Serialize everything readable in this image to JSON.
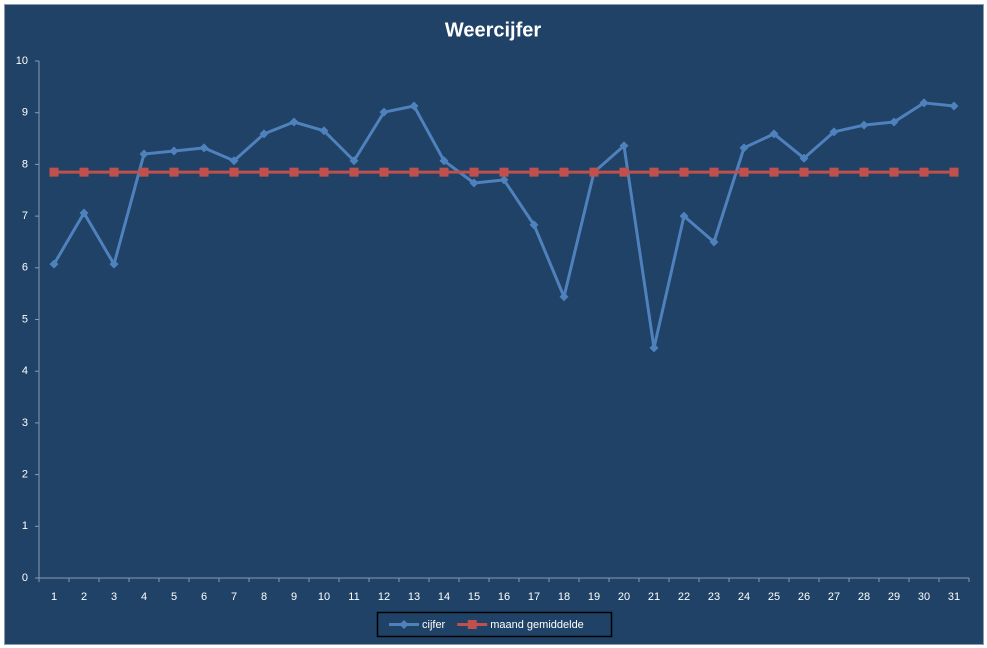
{
  "chart_data": {
    "type": "line",
    "title": "Weercijfer",
    "categories": [
      "1",
      "2",
      "3",
      "4",
      "5",
      "6",
      "7",
      "8",
      "9",
      "10",
      "11",
      "12",
      "13",
      "14",
      "15",
      "16",
      "17",
      "18",
      "19",
      "20",
      "21",
      "22",
      "23",
      "24",
      "25",
      "26",
      "27",
      "28",
      "29",
      "30",
      "31"
    ],
    "series": [
      {
        "name": "cijfer",
        "color": "#4f81bd",
        "marker": "diamond",
        "values": [
          6.07,
          7.06,
          6.07,
          8.2,
          8.26,
          8.32,
          8.07,
          8.59,
          8.82,
          8.65,
          8.07,
          9.01,
          9.13,
          8.07,
          7.64,
          7.7,
          6.83,
          5.44,
          7.85,
          8.36,
          4.45,
          7.0,
          6.5,
          8.32,
          8.59,
          8.12,
          8.63,
          8.76,
          8.82,
          9.19,
          9.13
        ]
      },
      {
        "name": "maand gemiddelde",
        "color": "#c0504d",
        "marker": "square",
        "values": [
          7.85,
          7.85,
          7.85,
          7.85,
          7.85,
          7.85,
          7.85,
          7.85,
          7.85,
          7.85,
          7.85,
          7.85,
          7.85,
          7.85,
          7.85,
          7.85,
          7.85,
          7.85,
          7.85,
          7.85,
          7.85,
          7.85,
          7.85,
          7.85,
          7.85,
          7.85,
          7.85,
          7.85,
          7.85,
          7.85,
          7.85
        ]
      }
    ],
    "ylim": [
      0,
      10
    ],
    "yticks": [
      0,
      1,
      2,
      3,
      4,
      5,
      6,
      7,
      8,
      9,
      10
    ],
    "grid": false,
    "legend": "bottom"
  }
}
